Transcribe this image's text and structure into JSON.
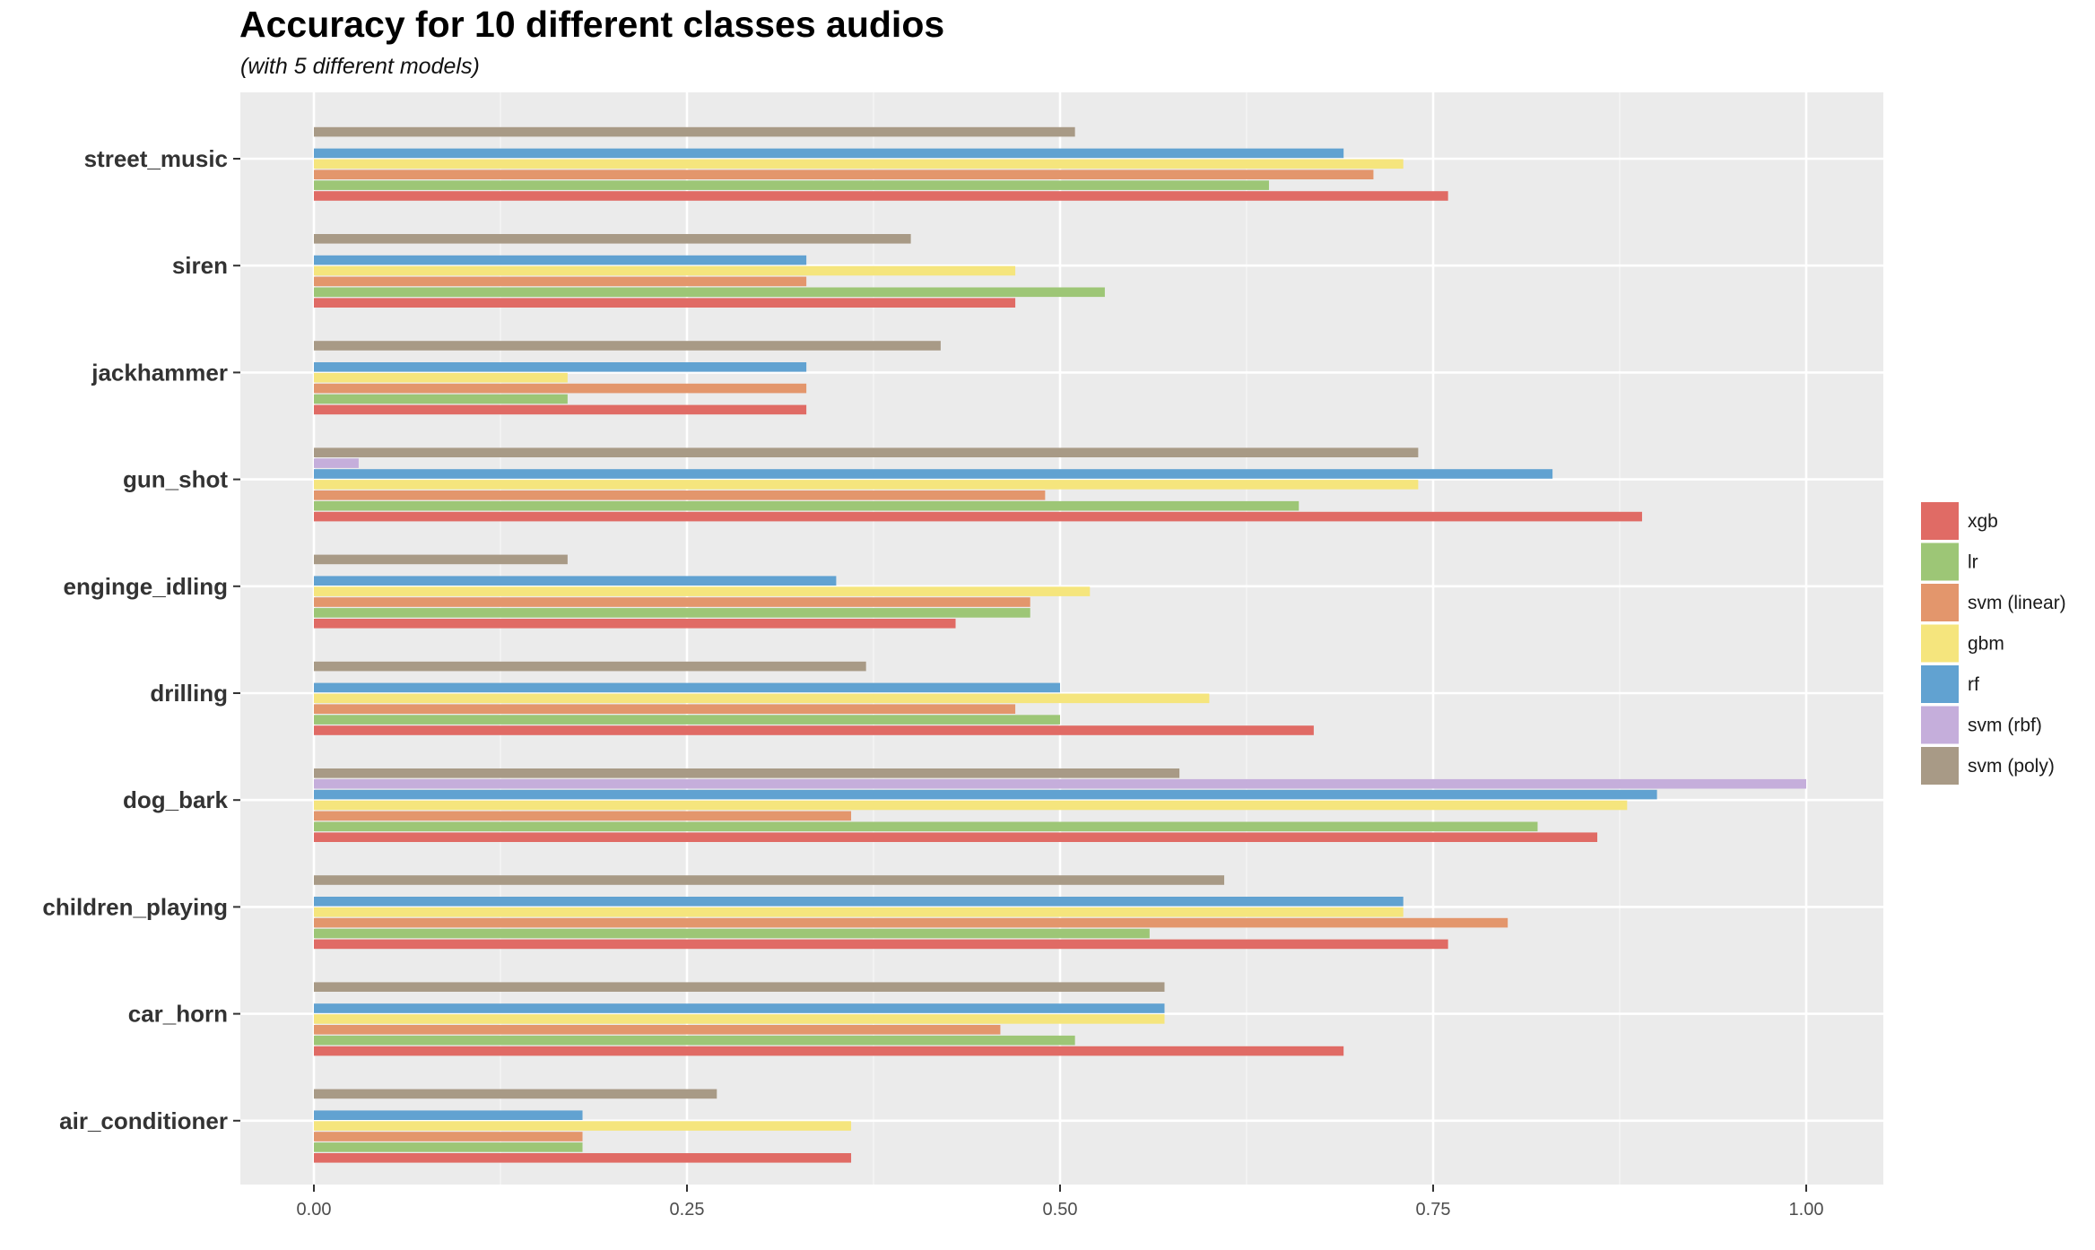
{
  "chart_data": {
    "type": "bar",
    "orientation": "horizontal",
    "title": "Accuracy for 10 different classes audios",
    "subtitle": "(with 5 different models)",
    "xlabel": "",
    "ylabel": "",
    "xlim": [
      -0.025,
      2.0
    ],
    "x_ticks": [
      "0.00",
      "0.25",
      "0.50",
      "0.75",
      "1.00"
    ],
    "grid": true,
    "legend_position": "right",
    "categories": [
      "street_music",
      "siren",
      "jackhammer",
      "gun_shot",
      "enginge_idling",
      "drilling",
      "dog_bark",
      "children_playing",
      "car_horn",
      "air_conditioner"
    ],
    "series": [
      {
        "name": "xgb",
        "color": "#E06B65",
        "values": [
          0.76,
          0.47,
          0.33,
          0.89,
          0.43,
          0.67,
          0.86,
          0.76,
          0.69,
          0.36
        ]
      },
      {
        "name": "lr",
        "color": "#9DC676",
        "values": [
          0.64,
          0.53,
          0.17,
          0.66,
          0.48,
          0.5,
          0.82,
          0.56,
          0.51,
          0.18
        ]
      },
      {
        "name": "svm (linear)",
        "color": "#E3966C",
        "values": [
          0.71,
          0.33,
          0.33,
          0.49,
          0.48,
          0.47,
          0.36,
          0.8,
          0.46,
          0.18
        ]
      },
      {
        "name": "gbm",
        "color": "#F5E57D",
        "values": [
          0.73,
          0.47,
          0.17,
          0.74,
          0.52,
          0.6,
          0.88,
          0.73,
          0.57,
          0.36
        ]
      },
      {
        "name": "rf",
        "color": "#61A2D1",
        "values": [
          0.69,
          0.33,
          0.33,
          0.83,
          0.35,
          0.5,
          0.9,
          0.73,
          0.57,
          0.18
        ]
      },
      {
        "name": "svm (rbf)",
        "color": "#C5AEDB",
        "values": [
          null,
          null,
          null,
          0.03,
          null,
          null,
          1.0,
          null,
          null,
          null
        ]
      },
      {
        "name": "svm (poly)",
        "color": "#A89A86",
        "values": [
          0.51,
          0.4,
          0.42,
          0.74,
          0.17,
          0.37,
          0.58,
          0.61,
          0.57,
          0.27
        ]
      }
    ]
  },
  "colors": {
    "panel_background": "#EBEBEB",
    "grid_major": "#FFFFFF",
    "grid_minor": "#F5F5F5"
  }
}
